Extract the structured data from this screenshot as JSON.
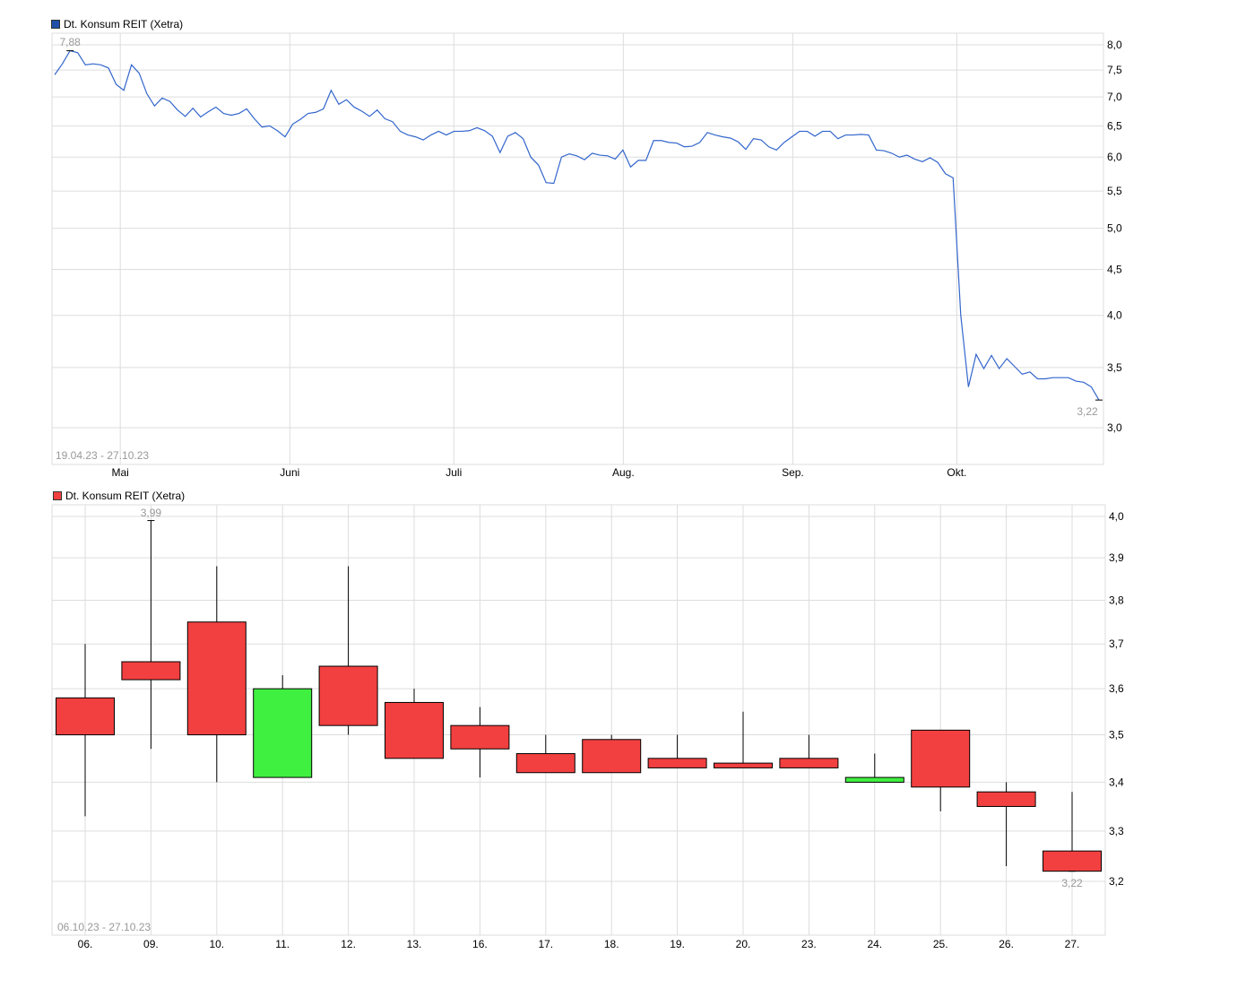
{
  "chart_data": [
    {
      "type": "line",
      "legend": "Dt. Konsum REIT (Xetra)",
      "range_label": "19.04.23 - 27.10.23",
      "color": "#3366cc",
      "legend_color": "#1f4fa8",
      "y_scale": "log",
      "ylim": [
        2.78,
        8.3
      ],
      "y_ticks": [
        "8,0",
        "7,5",
        "7,0",
        "6,5",
        "6,0",
        "5,5",
        "5,0",
        "4,5",
        "4,0",
        "3,5",
        "3,0"
      ],
      "y_tick_values": [
        8.0,
        7.5,
        7.0,
        6.5,
        6.0,
        5.5,
        5.0,
        4.5,
        4.0,
        3.5,
        3.0
      ],
      "x_ticks": [
        "Mai",
        "Juni",
        "Juli",
        "Aug.",
        "Sep.",
        "Okt."
      ],
      "x_tick_dates": [
        "2023-05-01",
        "2023-06-01",
        "2023-07-01",
        "2023-08-01",
        "2023-09-01",
        "2023-10-01"
      ],
      "x_start": "2023-04-19",
      "x_end": "2023-10-27",
      "max_label": "7,88",
      "max_value": 7.88,
      "last_label": "3,22",
      "last_value": 3.22,
      "grid": true,
      "values": [
        7.41,
        7.62,
        7.88,
        7.84,
        7.6,
        7.62,
        7.6,
        7.54,
        7.23,
        7.12,
        7.6,
        7.44,
        7.06,
        6.84,
        6.98,
        6.92,
        6.77,
        6.66,
        6.8,
        6.65,
        6.74,
        6.82,
        6.71,
        6.68,
        6.71,
        6.79,
        6.62,
        6.48,
        6.5,
        6.42,
        6.32,
        6.53,
        6.61,
        6.71,
        6.73,
        6.79,
        7.12,
        6.87,
        6.95,
        6.82,
        6.75,
        6.66,
        6.77,
        6.62,
        6.57,
        6.41,
        6.35,
        6.32,
        6.27,
        6.35,
        6.41,
        6.35,
        6.41,
        6.41,
        6.42,
        6.47,
        6.42,
        6.33,
        6.07,
        6.33,
        6.39,
        6.29,
        6.0,
        5.88,
        5.62,
        5.61,
        6.0,
        6.05,
        6.02,
        5.96,
        6.06,
        6.03,
        6.02,
        5.97,
        6.11,
        5.85,
        5.95,
        5.95,
        6.26,
        6.26,
        6.23,
        6.22,
        6.16,
        6.17,
        6.23,
        6.39,
        6.35,
        6.32,
        6.3,
        6.24,
        6.12,
        6.29,
        6.27,
        6.16,
        6.11,
        6.23,
        6.32,
        6.41,
        6.41,
        6.33,
        6.41,
        6.41,
        6.29,
        6.35,
        6.35,
        6.36,
        6.35,
        6.11,
        6.1,
        6.06,
        6.0,
        6.03,
        5.97,
        5.93,
        5.99,
        5.92,
        5.75,
        5.69,
        4.0,
        3.33,
        3.62,
        3.49,
        3.61,
        3.49,
        3.58,
        3.51,
        3.44,
        3.46,
        3.4,
        3.4,
        3.41,
        3.41,
        3.41,
        3.38,
        3.37,
        3.33,
        3.22
      ]
    },
    {
      "type": "candlestick",
      "legend": "Dt. Konsum REIT (Xetra)",
      "range_label": "06.10.23 - 27.10.23",
      "up_color": "#40f040",
      "down_color": "#f24040",
      "legend_color": "#f24040",
      "y_scale": "log",
      "ylim": [
        3.13,
        4.025
      ],
      "y_ticks": [
        "4,0",
        "3,9",
        "3,8",
        "3,7",
        "3,6",
        "3,5",
        "3,4",
        "3,3",
        "3,2"
      ],
      "y_tick_values": [
        4.0,
        3.9,
        3.8,
        3.7,
        3.6,
        3.5,
        3.4,
        3.3,
        3.2
      ],
      "max_label": "3,99",
      "min_label": "3,22",
      "grid": true,
      "categories": [
        "06.",
        "09.",
        "10.",
        "11.",
        "12.",
        "13.",
        "16.",
        "17.",
        "18.",
        "19.",
        "20.",
        "23.",
        "24.",
        "25.",
        "26.",
        "27."
      ],
      "open": [
        3.58,
        3.66,
        3.75,
        3.41,
        3.65,
        3.57,
        3.52,
        3.46,
        3.49,
        3.45,
        3.44,
        3.45,
        3.4,
        3.51,
        3.38,
        3.26
      ],
      "high": [
        3.7,
        3.99,
        3.88,
        3.63,
        3.88,
        3.6,
        3.56,
        3.5,
        3.5,
        3.5,
        3.55,
        3.5,
        3.46,
        3.51,
        3.4,
        3.38
      ],
      "low": [
        3.33,
        3.47,
        3.4,
        3.41,
        3.5,
        3.45,
        3.41,
        3.42,
        3.42,
        3.43,
        3.43,
        3.43,
        3.4,
        3.34,
        3.23,
        3.22
      ],
      "close": [
        3.5,
        3.62,
        3.5,
        3.6,
        3.52,
        3.45,
        3.47,
        3.42,
        3.42,
        3.43,
        3.43,
        3.43,
        3.41,
        3.39,
        3.35,
        3.22
      ]
    }
  ]
}
